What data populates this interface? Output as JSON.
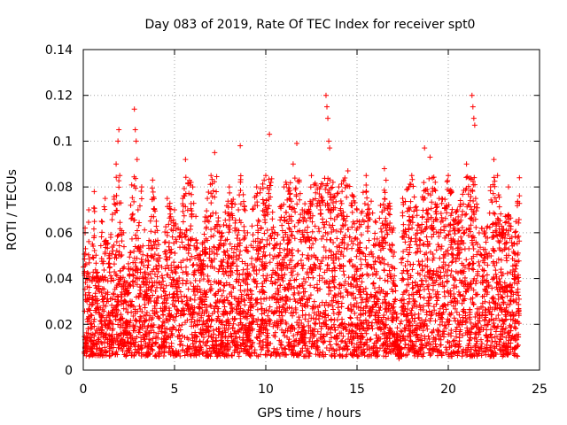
{
  "chart_data": {
    "type": "scatter",
    "title": "Day 083 of 2019, Rate Of TEC Index for receiver spt0",
    "xlabel": "GPS time / hours",
    "ylabel": "ROTI / TECUs",
    "xlim": [
      0,
      25
    ],
    "ylim": [
      0,
      0.14
    ],
    "x_ticks": [
      "0",
      "5",
      "10",
      "15",
      "20",
      "25"
    ],
    "y_ticks": [
      "0",
      "0.02",
      "0.04",
      "0.06",
      "0.08",
      "0.1",
      "0.12",
      "0.14"
    ],
    "x_tick_values": [
      0,
      5,
      10,
      15,
      20,
      25
    ],
    "y_tick_values": [
      0,
      0.02,
      0.04,
      0.06,
      0.08,
      0.1,
      0.12,
      0.14
    ],
    "grid": true,
    "marker": "+",
    "marker_color": "#ff0000",
    "series": [
      {
        "name": "ROTI",
        "x": [
          0.0,
          0.1,
          0.2,
          0.3,
          0.4,
          0.5,
          0.6,
          0.8,
          1.0,
          1.2,
          1.4,
          1.6,
          1.8,
          1.9,
          1.95,
          2.0,
          2.2,
          2.4,
          2.6,
          2.8,
          2.85,
          2.9,
          2.95,
          3.0,
          3.2,
          3.5,
          3.8,
          4.0,
          4.3,
          4.6,
          5.0,
          5.3,
          5.6,
          6.0,
          6.4,
          6.8,
          7.0,
          7.2,
          7.6,
          8.0,
          8.5,
          8.6,
          9.0,
          9.5,
          10.0,
          10.2,
          10.5,
          11.0,
          11.5,
          11.7,
          12.0,
          12.5,
          13.0,
          13.3,
          13.35,
          13.4,
          13.45,
          13.5,
          14.0,
          14.5,
          15.0,
          15.5,
          16.0,
          16.5,
          17.0,
          17.3,
          17.5,
          18.0,
          18.5,
          18.7,
          19.0,
          19.5,
          20.0,
          20.5,
          21.0,
          21.3,
          21.35,
          21.4,
          21.45,
          21.5,
          22.0,
          22.5,
          22.7,
          23.0,
          23.3,
          23.6,
          23.9
        ],
        "y": [
          0.045,
          0.062,
          0.03,
          0.07,
          0.02,
          0.055,
          0.078,
          0.04,
          0.065,
          0.075,
          0.05,
          0.068,
          0.09,
          0.1,
          0.105,
          0.085,
          0.06,
          0.035,
          0.072,
          0.114,
          0.105,
          0.1,
          0.092,
          0.07,
          0.08,
          0.05,
          0.083,
          0.065,
          0.045,
          0.075,
          0.07,
          0.06,
          0.092,
          0.08,
          0.05,
          0.075,
          0.085,
          0.095,
          0.06,
          0.08,
          0.07,
          0.098,
          0.06,
          0.08,
          0.085,
          0.103,
          0.06,
          0.08,
          0.09,
          0.099,
          0.07,
          0.085,
          0.08,
          0.12,
          0.115,
          0.11,
          0.1,
          0.097,
          0.08,
          0.087,
          0.07,
          0.085,
          0.065,
          0.088,
          0.062,
          0.005,
          0.075,
          0.085,
          0.06,
          0.097,
          0.093,
          0.075,
          0.085,
          0.07,
          0.09,
          0.12,
          0.115,
          0.11,
          0.107,
          0.075,
          0.06,
          0.092,
          0.085,
          0.06,
          0.08,
          0.055,
          0.084
        ]
      }
    ]
  }
}
